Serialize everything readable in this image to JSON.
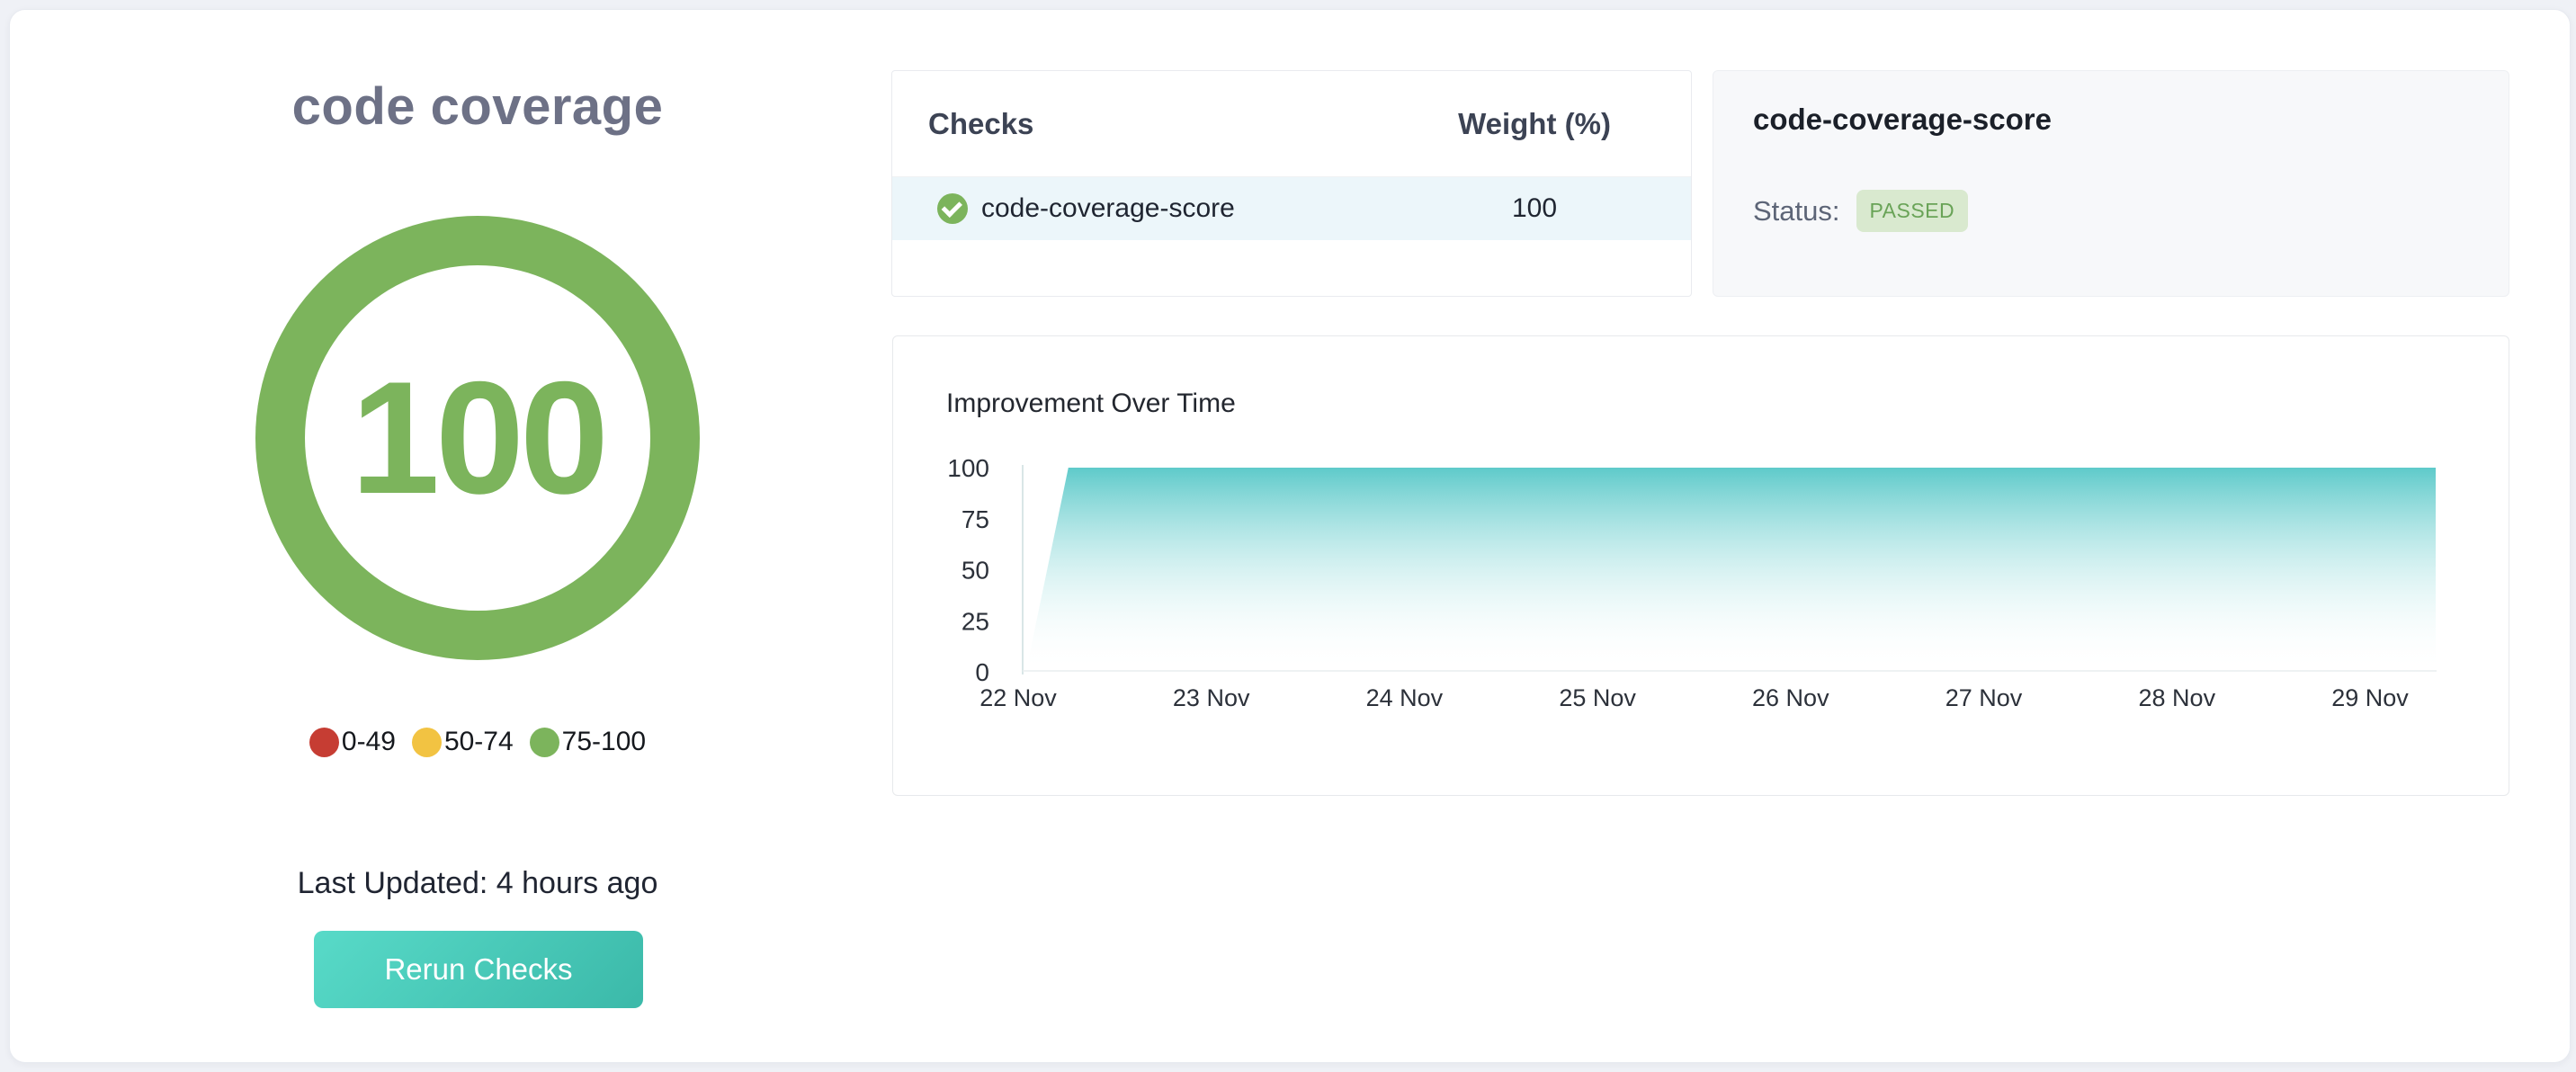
{
  "scorecard": {
    "title": "code coverage",
    "score": "100",
    "gauge_color": "#7cb45c",
    "legend": [
      {
        "label": "0-49",
        "color": "#c63d33"
      },
      {
        "label": "50-74",
        "color": "#f2c342"
      },
      {
        "label": "75-100",
        "color": "#7cb45c"
      }
    ],
    "last_updated": "Last Updated: 4 hours ago",
    "rerun_button_label": "Rerun Checks"
  },
  "checks_table": {
    "col_checks": "Checks",
    "col_weight": "Weight (%)",
    "rows": [
      {
        "name": "code-coverage-score",
        "weight": "100",
        "status_icon": "check-passed-icon",
        "icon_color": "#7cb45c"
      }
    ]
  },
  "check_detail": {
    "name": "code-coverage-score",
    "status_label": "Status:",
    "status_value": "PASSED",
    "badge_bg": "#d9e9cf",
    "badge_text_color": "#69a357"
  },
  "chart_data": {
    "type": "area",
    "title": "Improvement Over Time",
    "x_tick_labels": [
      "22 Nov",
      "23 Nov",
      "24 Nov",
      "25 Nov",
      "26 Nov",
      "27 Nov",
      "28 Nov",
      "29 Nov"
    ],
    "y_ticks": [
      100,
      75,
      50,
      25,
      0
    ],
    "ylim": [
      0,
      100
    ],
    "xlabel": "",
    "ylabel": "",
    "grid": false,
    "legend_shown": false,
    "fill_top_color": "#5ecaca",
    "fill_bottom_color": "#ffffff",
    "series": [
      {
        "name": "code-coverage-score",
        "note": "day_offset measured in days after the 22 Nov tick; score jumps from 0 to 100 early on 22 Nov and stays at 100 through 29 Nov",
        "points": [
          {
            "day_offset": 0.04,
            "value": 0
          },
          {
            "day_offset": 0.26,
            "value": 100
          },
          {
            "day_offset": 7.34,
            "value": 100
          }
        ]
      }
    ]
  }
}
